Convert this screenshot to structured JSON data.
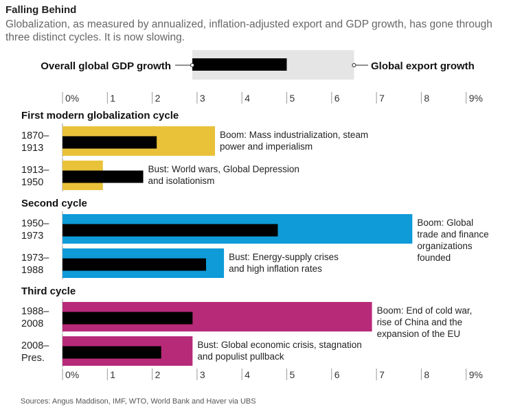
{
  "title": "Falling Behind",
  "subtitle": "Globalization, as measured by annualized, inflation-adjusted export and GDP growth, has gone through three distinct cycles. It is now slowing.",
  "source": "Sources: Angus Maddison, IMF, WTO, World Bank and Haver via UBS",
  "legend": {
    "gdp_label": "Overall global GDP growth",
    "export_label": "Global export growth"
  },
  "colors": {
    "cycle1": "#E9C23A",
    "cycle2": "#0E9BD8",
    "cycle3": "#B72A78",
    "gdp_bar": "#000000",
    "legend_box": "#E5E5E5"
  },
  "chart_data": {
    "type": "bar",
    "orientation": "horizontal",
    "xlim": [
      0,
      9
    ],
    "x_ticks": [
      "0%",
      "1",
      "2",
      "3",
      "4",
      "5",
      "6",
      "7",
      "8",
      "9%"
    ],
    "legend_example": {
      "gdp": 5.0,
      "export": 6.5
    },
    "groups": [
      {
        "name": "First modern globalization cycle",
        "color_key": "cycle1",
        "rows": [
          {
            "period_line1": "1870–",
            "period_line2": "1913",
            "export": 3.4,
            "gdp": 2.1,
            "annotation_lines": [
              "Boom: Mass industrialization, steam",
              "power and imperialism"
            ]
          },
          {
            "period_line1": "1913–",
            "period_line2": "1950",
            "export": 0.9,
            "gdp": 1.8,
            "annotation_lines": [
              "Bust: World wars, Global Depression",
              "and isolationism"
            ]
          }
        ]
      },
      {
        "name": "Second cycle",
        "color_key": "cycle2",
        "rows": [
          {
            "period_line1": "1950–",
            "period_line2": "1973",
            "export": 7.8,
            "gdp": 4.8,
            "annotation_lines": [
              "Boom: Global",
              "trade and finance",
              "organizations",
              "founded"
            ]
          },
          {
            "period_line1": "1973–",
            "period_line2": "1988",
            "export": 3.6,
            "gdp": 3.2,
            "annotation_lines": [
              "Bust: Energy-supply crises",
              "and high inflation rates"
            ]
          }
        ]
      },
      {
        "name": "Third cycle",
        "color_key": "cycle3",
        "rows": [
          {
            "period_line1": "1988–",
            "period_line2": "2008",
            "export": 6.9,
            "gdp": 2.9,
            "annotation_lines": [
              "Boom: End of cold war,",
              "rise of China and the",
              "expansion of the EU"
            ]
          },
          {
            "period_line1": "2008–",
            "period_line2": "Pres.",
            "export": 2.9,
            "gdp": 2.2,
            "annotation_lines": [
              "Bust: Global economic crisis, stagnation",
              "and populist pullback"
            ]
          }
        ]
      }
    ]
  }
}
